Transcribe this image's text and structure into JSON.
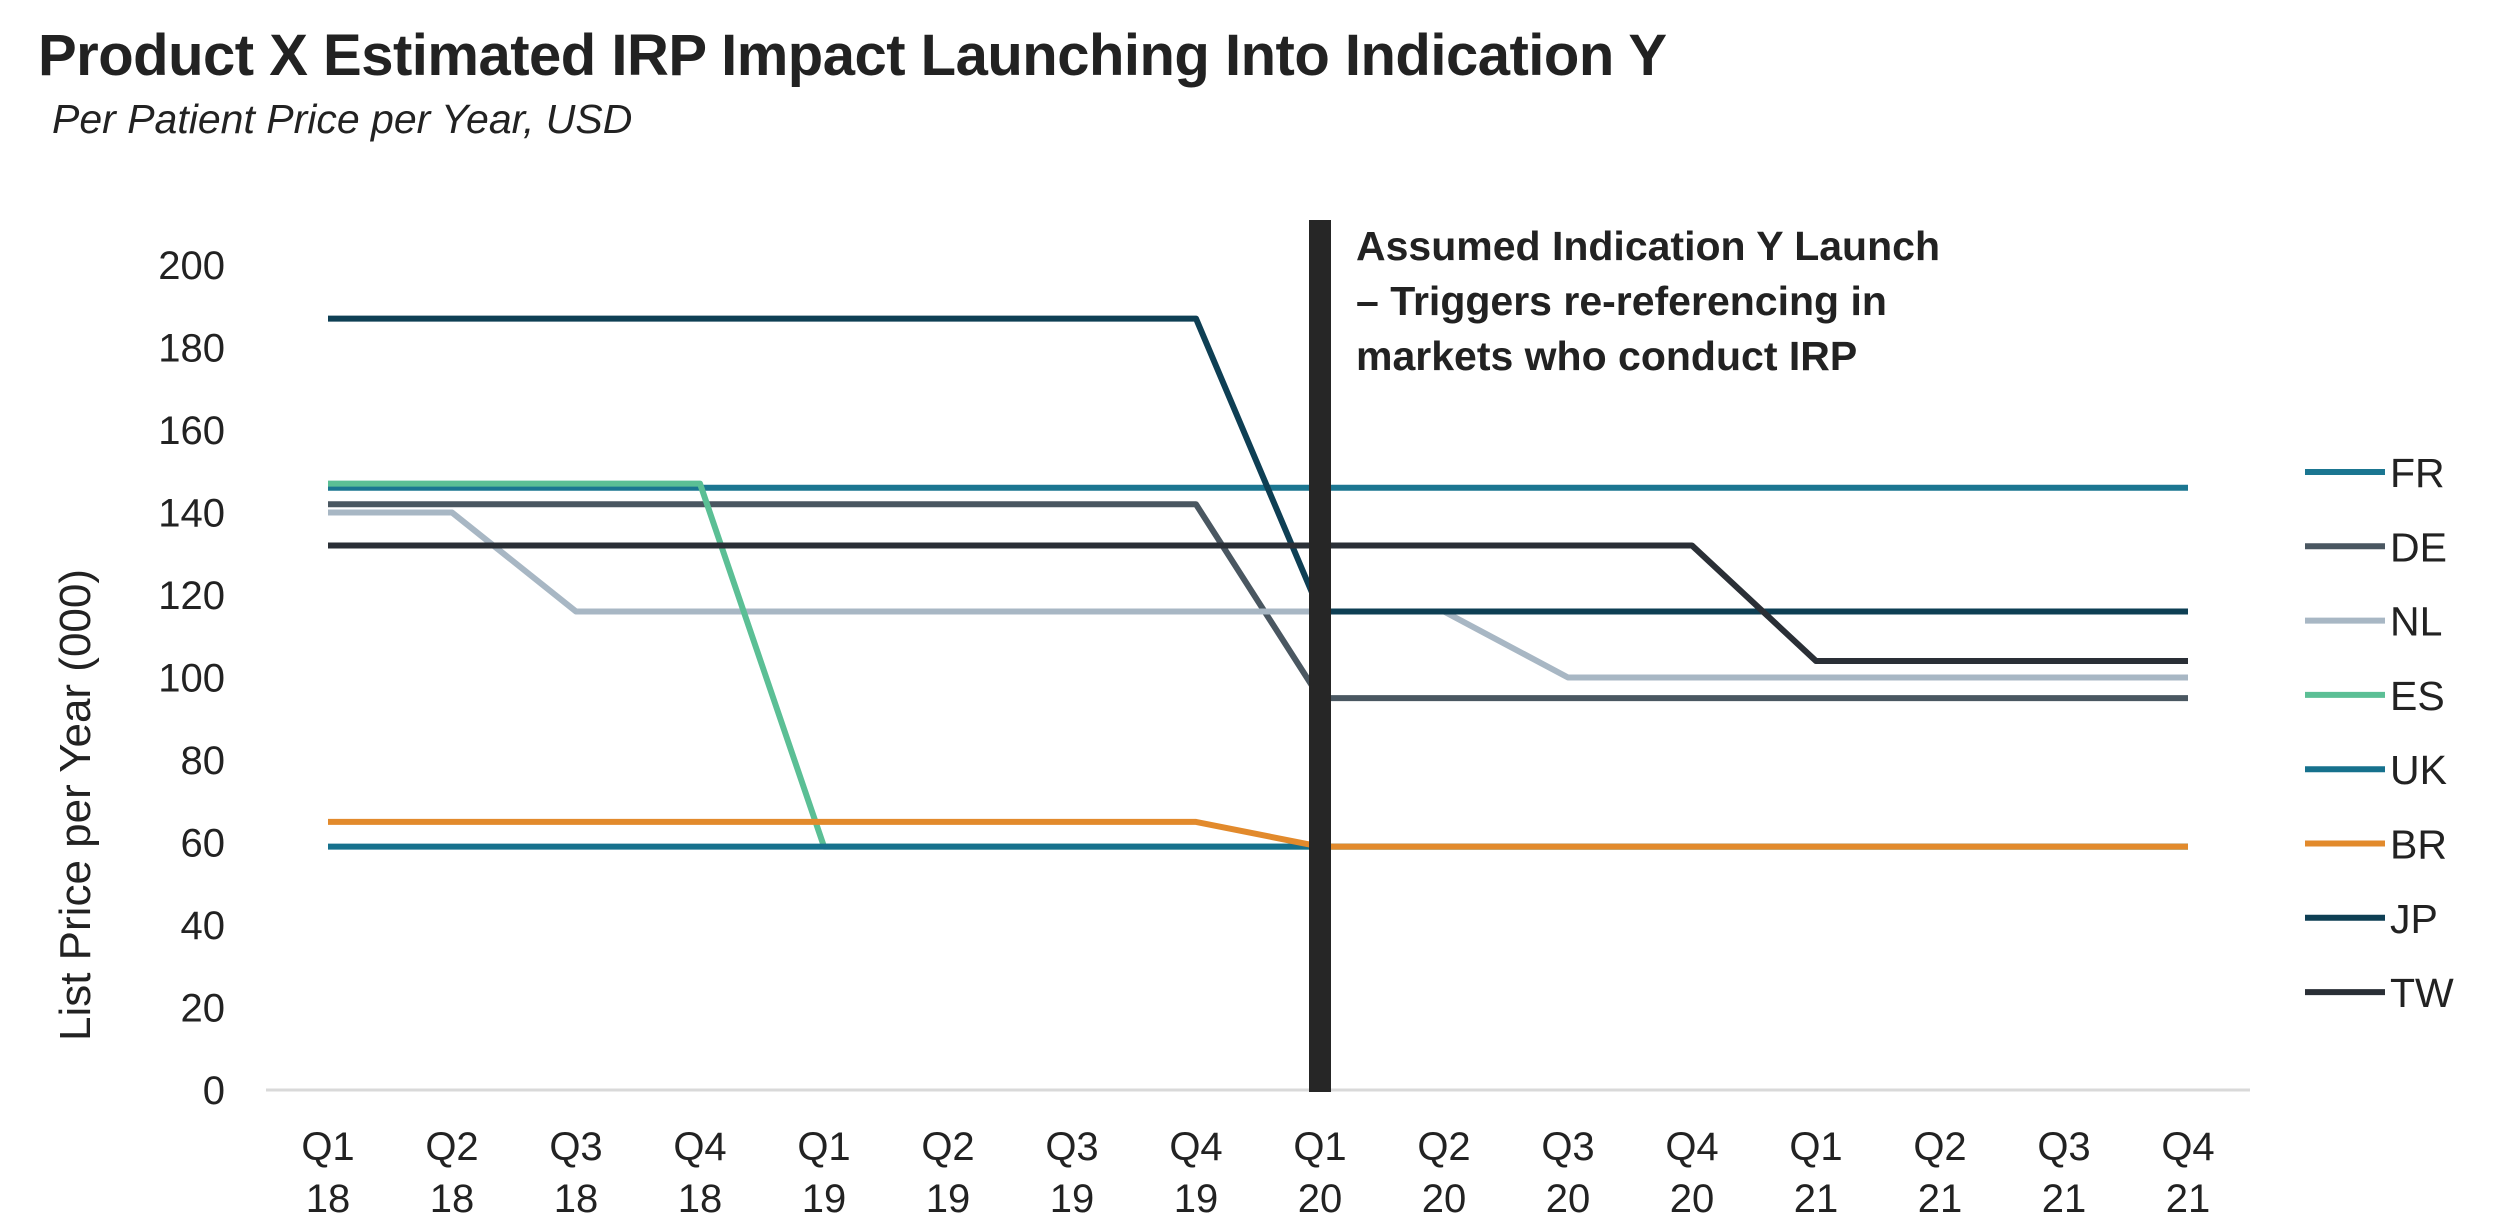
{
  "chart_data": {
    "type": "line",
    "title": "Product X Estimated IRP Impact Launching Into Indication Y",
    "subtitle": "Per Patient Price per Year, USD",
    "ylabel": "List Price per Year (000)",
    "xlabel": "",
    "ylim": [
      0,
      200
    ],
    "yticks": [
      0,
      20,
      40,
      60,
      80,
      100,
      120,
      140,
      160,
      180,
      200
    ],
    "categories": [
      [
        "Q1",
        "18"
      ],
      [
        "Q2",
        "18"
      ],
      [
        "Q3",
        "18"
      ],
      [
        "Q4",
        "18"
      ],
      [
        "Q1",
        "19"
      ],
      [
        "Q2",
        "19"
      ],
      [
        "Q3",
        "19"
      ],
      [
        "Q4",
        "19"
      ],
      [
        "Q1",
        "20"
      ],
      [
        "Q2",
        "20"
      ],
      [
        "Q3",
        "20"
      ],
      [
        "Q4",
        "20"
      ],
      [
        "Q1",
        "21"
      ],
      [
        "Q2",
        "21"
      ],
      [
        "Q3",
        "21"
      ],
      [
        "Q4",
        "21"
      ]
    ],
    "series": [
      {
        "name": "FR",
        "color": "#1b7691",
        "values": [
          146,
          146,
          146,
          146,
          146,
          146,
          146,
          146,
          146,
          146,
          146,
          146,
          146,
          146,
          146,
          146
        ]
      },
      {
        "name": "DE",
        "color": "#4a5761",
        "values": [
          142,
          142,
          142,
          142,
          142,
          142,
          142,
          142,
          95,
          95,
          95,
          95,
          95,
          95,
          95,
          95
        ]
      },
      {
        "name": "NL",
        "color": "#a8b7c4",
        "values": [
          140,
          140,
          116,
          116,
          116,
          116,
          116,
          116,
          116,
          116,
          100,
          100,
          100,
          100,
          100,
          100
        ]
      },
      {
        "name": "ES",
        "color": "#5bbf95",
        "values": [
          147,
          147,
          147,
          147,
          59,
          59,
          59,
          59,
          59,
          59,
          59,
          59,
          59,
          59,
          59,
          59
        ]
      },
      {
        "name": "UK",
        "color": "#16718d",
        "values": [
          59,
          59,
          59,
          59,
          59,
          59,
          59,
          59,
          59,
          59,
          59,
          59,
          59,
          59,
          59,
          59
        ]
      },
      {
        "name": "BR",
        "color": "#e28a2c",
        "values": [
          65,
          65,
          65,
          65,
          65,
          65,
          65,
          65,
          59,
          59,
          59,
          59,
          59,
          59,
          59,
          59
        ]
      },
      {
        "name": "JP",
        "color": "#0e3f54",
        "values": [
          187,
          187,
          187,
          187,
          187,
          187,
          187,
          187,
          116,
          116,
          116,
          116,
          116,
          116,
          116,
          116
        ]
      },
      {
        "name": "TW",
        "color": "#2a2f36",
        "values": [
          132,
          132,
          132,
          132,
          132,
          132,
          132,
          132,
          132,
          132,
          132,
          132,
          104,
          104,
          104,
          104
        ]
      }
    ],
    "annotation": {
      "at_category_index": 8,
      "lines": [
        "Assumed Indication Y Launch",
        "– Triggers re-referencing in",
        "markets who conduct IRP"
      ],
      "color": "#262626"
    },
    "legend_position": "right",
    "grid": false
  }
}
